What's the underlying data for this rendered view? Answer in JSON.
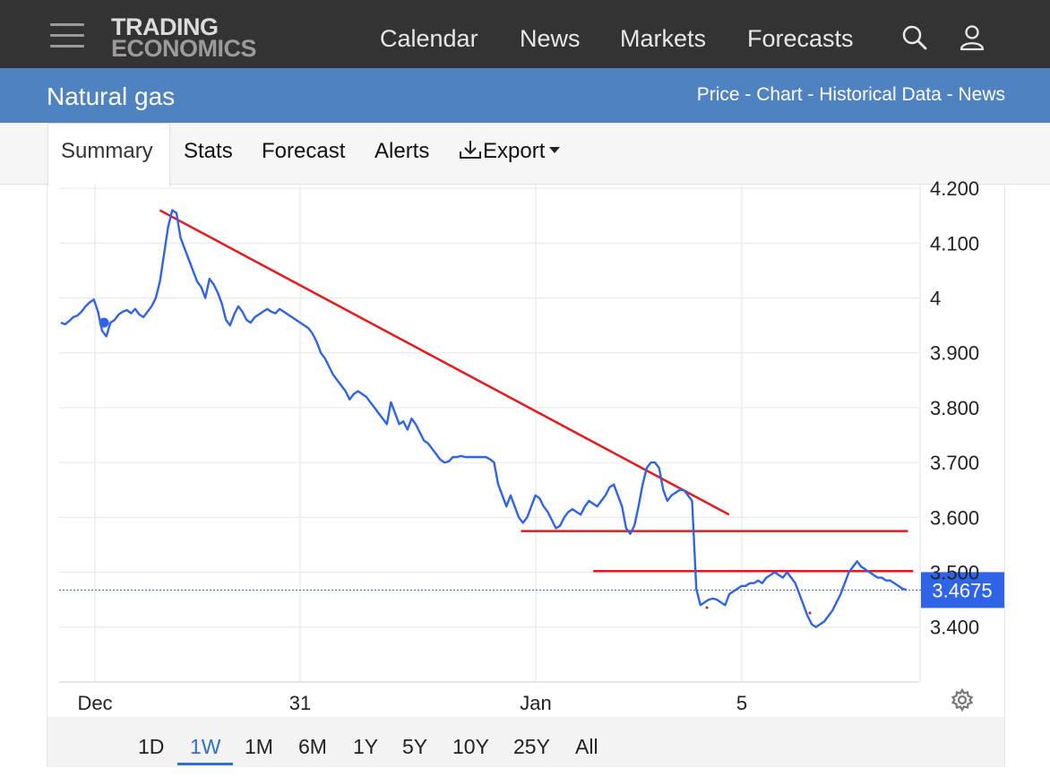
{
  "header": {
    "logo_line1": "TRADING",
    "logo_line2": "ECONOMICS",
    "nav": [
      "Calendar",
      "News",
      "Markets",
      "Forecasts"
    ],
    "search_icon": "search-icon",
    "user_icon": "user-icon",
    "menu_icon": "hamburger-menu-icon"
  },
  "title_bar": {
    "title": "Natural gas",
    "crumbs": [
      "Price",
      "Chart",
      "Historical Data",
      "News"
    ],
    "separator": " - "
  },
  "tabs": {
    "items": [
      "Summary",
      "Stats",
      "Forecast",
      "Alerts"
    ],
    "export": "Export",
    "active": "Summary"
  },
  "ranges": {
    "items": [
      "1D",
      "1W",
      "1M",
      "6M",
      "1Y",
      "5Y",
      "10Y",
      "25Y",
      "All"
    ],
    "active": "1W"
  },
  "colors": {
    "line": "#2f64e6",
    "trendline": "#e8191c",
    "price_badge": "#2f64e6",
    "header_bg": "#333333",
    "title_bg": "#4f82c1"
  },
  "chart_data": {
    "type": "line",
    "xlabel": "",
    "ylabel": "",
    "x_ticks": [
      "Dec",
      "31",
      "Jan",
      "5"
    ],
    "y_ticks": [
      "4.200",
      "4.100",
      "4",
      "3.900",
      "3.800",
      "3.700",
      "3.600",
      "3.500",
      "3.400"
    ],
    "ylim": [
      3.3,
      4.2
    ],
    "grid": true,
    "last_price": 3.4675,
    "last_price_label": "3.4675",
    "series": [
      {
        "values": [
          3.955,
          3.952,
          3.958,
          3.965,
          3.968,
          3.975,
          3.985,
          3.992,
          3.997,
          3.975,
          3.94,
          3.93,
          3.955,
          3.96,
          3.97,
          3.975,
          3.978,
          3.972,
          3.98,
          3.97,
          3.965,
          3.975,
          3.985,
          4.0,
          4.03,
          4.08,
          4.13,
          4.16,
          4.155,
          4.11,
          4.09,
          4.07,
          4.05,
          4.03,
          4.02,
          4.0,
          4.035,
          4.025,
          4.01,
          3.99,
          3.96,
          3.95,
          3.97,
          3.985,
          3.975,
          3.96,
          3.955,
          3.965,
          3.97,
          3.975,
          3.98,
          3.975,
          3.972,
          3.98,
          3.975,
          3.97,
          3.965,
          3.96,
          3.955,
          3.95,
          3.945,
          3.935,
          3.92,
          3.9,
          3.89,
          3.875,
          3.86,
          3.85,
          3.84,
          3.83,
          3.815,
          3.825,
          3.83,
          3.825,
          3.82,
          3.81,
          3.8,
          3.79,
          3.78,
          3.77,
          3.81,
          3.79,
          3.77,
          3.775,
          3.76,
          3.78,
          3.77,
          3.755,
          3.74,
          3.735,
          3.725,
          3.715,
          3.705,
          3.7,
          3.702,
          3.71,
          3.71,
          3.712,
          3.71,
          3.71,
          3.71,
          3.71,
          3.71,
          3.71,
          3.706,
          3.7,
          3.66,
          3.64,
          3.62,
          3.64,
          3.62,
          3.6,
          3.59,
          3.6,
          3.62,
          3.64,
          3.635,
          3.62,
          3.61,
          3.595,
          3.58,
          3.585,
          3.6,
          3.61,
          3.615,
          3.61,
          3.605,
          3.62,
          3.63,
          3.625,
          3.62,
          3.63,
          3.64,
          3.655,
          3.66,
          3.64,
          3.62,
          3.58,
          3.57,
          3.585,
          3.62,
          3.66,
          3.69,
          3.7,
          3.7,
          3.69,
          3.65,
          3.63,
          3.64,
          3.645,
          3.65,
          3.65,
          3.64,
          3.63,
          3.47,
          3.44,
          3.445,
          3.45,
          3.452,
          3.45,
          3.445,
          3.44,
          3.46,
          3.465,
          3.47,
          3.475,
          3.475,
          3.48,
          3.48,
          3.485,
          3.48,
          3.49,
          3.495,
          3.5,
          3.495,
          3.49,
          3.5,
          3.49,
          3.48,
          3.46,
          3.44,
          3.42,
          3.405,
          3.4,
          3.405,
          3.41,
          3.42,
          3.43,
          3.445,
          3.46,
          3.48,
          3.5,
          3.51,
          3.52,
          3.51,
          3.505,
          3.5,
          3.495,
          3.49,
          3.49,
          3.485,
          3.485,
          3.48,
          3.475,
          3.47,
          3.4675
        ]
      }
    ],
    "trendlines": [
      {
        "from": [
          0.117,
          4.16
        ],
        "to": [
          0.779,
          3.605
        ]
      },
      {
        "from": [
          0.537,
          3.575
        ],
        "to": [
          0.987,
          3.575
        ]
      },
      {
        "from": [
          0.621,
          3.502
        ],
        "to": [
          0.993,
          3.502
        ]
      }
    ]
  }
}
